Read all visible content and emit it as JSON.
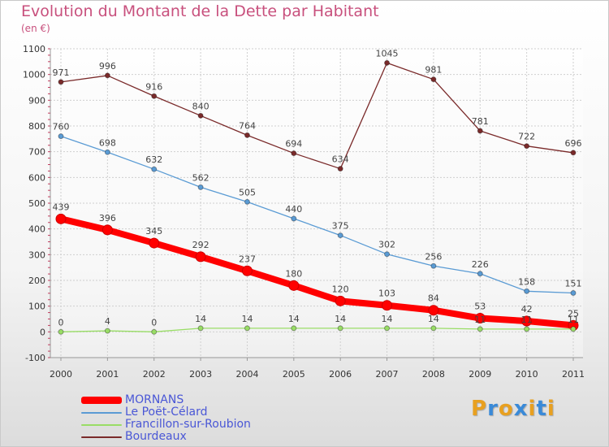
{
  "title": "Evolution du Montant de la Dette par Habitant",
  "subtitle": "(en €)",
  "logo": {
    "letters": [
      "P",
      "r",
      "o",
      "x",
      "i",
      "t",
      "i"
    ],
    "colors": [
      "#e8a020",
      "#3a8ad8",
      "#e8a020",
      "#3a8ad8",
      "#e8a020",
      "#3a8ad8",
      "#e8a020"
    ]
  },
  "chart_data": {
    "type": "line",
    "x": [
      "2000",
      "2001",
      "2002",
      "2003",
      "2004",
      "2005",
      "2006",
      "2007",
      "2008",
      "2009",
      "2010",
      "2011"
    ],
    "ylim": [
      -100,
      1100
    ],
    "yticks": [
      "-100",
      "0",
      "100",
      "200",
      "300",
      "400",
      "500",
      "600",
      "700",
      "800",
      "900",
      "1000",
      "1100"
    ],
    "grid": true,
    "series": [
      {
        "name": "Bourdeaux",
        "color": "#7a2a2a",
        "values": [
          971,
          996,
          916,
          840,
          764,
          694,
          634,
          1045,
          981,
          781,
          722,
          696
        ],
        "labels": [
          "971",
          "996",
          "916",
          "840",
          "764",
          "694",
          "634",
          "1045",
          "981",
          "781",
          "722",
          "696"
        ]
      },
      {
        "name": "Le Poët-Célard",
        "color": "#5a9bd4",
        "values": [
          760,
          698,
          632,
          562,
          505,
          440,
          375,
          302,
          256,
          226,
          158,
          151
        ],
        "labels": [
          "760",
          "698",
          "632",
          "562",
          "505",
          "440",
          "375",
          "302",
          "256",
          "226",
          "158",
          "151"
        ]
      },
      {
        "name": "MORNANS",
        "color": "#ff0000",
        "values": [
          439,
          396,
          345,
          292,
          237,
          180,
          120,
          103,
          84,
          53,
          42,
          25
        ],
        "labels": [
          "439",
          "396",
          "345",
          "292",
          "237",
          "180",
          "120",
          "103",
          "84",
          "53",
          "42",
          "25"
        ]
      },
      {
        "name": "Francillon-sur-Roubion",
        "color": "#99dd66",
        "values": [
          0,
          4,
          0,
          14,
          14,
          14,
          14,
          14,
          14,
          11,
          11,
          11
        ],
        "labels": [
          "0",
          "4",
          "0",
          "14",
          "14",
          "14",
          "14",
          "14",
          "14",
          "11",
          "11",
          "11"
        ]
      }
    ]
  },
  "legend": [
    {
      "label": "MORNANS",
      "color": "#ff0000"
    },
    {
      "label": "Le Poët-Célard",
      "color": "#5a9bd4"
    },
    {
      "label": "Francillon-sur-Roubion",
      "color": "#99dd66"
    },
    {
      "label": "Bourdeaux",
      "color": "#7a2a2a"
    }
  ]
}
